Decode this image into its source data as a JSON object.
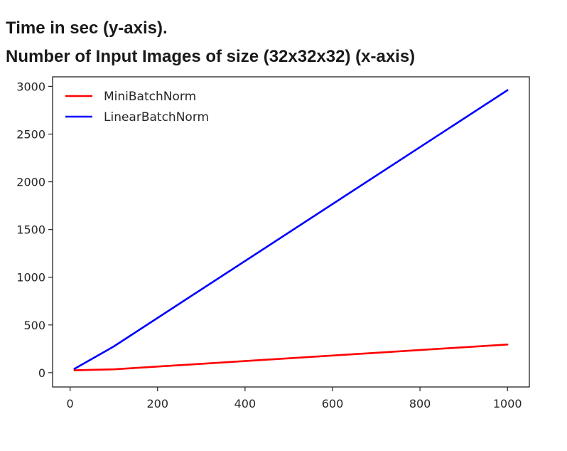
{
  "heading": {
    "line1": "Time in sec (y-axis).",
    "line2": "Number of Input Images of size (32x32x32) (x-axis)"
  },
  "chart_data": {
    "type": "line",
    "title": "",
    "xlabel": "",
    "ylabel": "",
    "xlim": [
      -40,
      1050
    ],
    "ylim": [
      -150,
      3100
    ],
    "xticks": [
      0,
      200,
      400,
      600,
      800,
      1000
    ],
    "yticks": [
      0,
      500,
      1000,
      1500,
      2000,
      2500,
      3000
    ],
    "grid": false,
    "legend_position": "top-left",
    "series": [
      {
        "name": "MiniBatchNorm",
        "color": "#ff0000",
        "x": [
          10,
          100,
          1000
        ],
        "y": [
          25,
          35,
          295
        ]
      },
      {
        "name": "LinearBatchNorm",
        "color": "#0000ff",
        "x": [
          10,
          100,
          1000
        ],
        "y": [
          40,
          275,
          2960
        ]
      }
    ]
  }
}
